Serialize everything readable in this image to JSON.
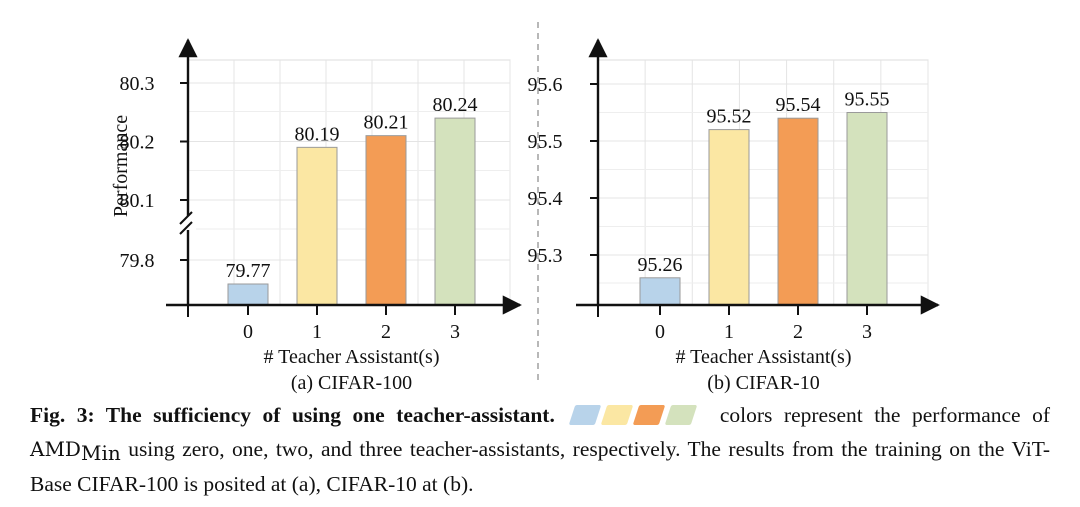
{
  "chart_data": [
    {
      "type": "bar",
      "panel_label": "(a) CIFAR-100",
      "xlabel": "# Teacher Assistant(s)",
      "ylabel": "Performance",
      "categories": [
        "0",
        "1",
        "2",
        "3"
      ],
      "values": [
        79.77,
        80.19,
        80.21,
        80.24
      ],
      "value_labels": [
        "79.77",
        "80.19",
        "80.21",
        "80.24"
      ],
      "yticks": [
        79.8,
        80.1,
        80.2,
        80.3
      ],
      "ytick_labels": [
        "79.8",
        "80.1",
        "80.2",
        "80.3"
      ],
      "ylim_lower": [
        79.75,
        79.82
      ],
      "ylim_upper": [
        80.06,
        80.33
      ],
      "axis_break": true,
      "grid": true
    },
    {
      "type": "bar",
      "panel_label": "(b) CIFAR-10",
      "xlabel": "# Teacher Assistant(s)",
      "ylabel": "",
      "categories": [
        "0",
        "1",
        "2",
        "3"
      ],
      "values": [
        95.26,
        95.52,
        95.54,
        95.55
      ],
      "value_labels": [
        "95.26",
        "95.52",
        "95.54",
        "95.55"
      ],
      "yticks": [
        95.3,
        95.4,
        95.5,
        95.6
      ],
      "ytick_labels": [
        "95.3",
        "95.4",
        "95.5",
        "95.6"
      ],
      "ylim": [
        95.22,
        95.63
      ],
      "grid": true
    }
  ],
  "colors": [
    "#b8d3ea",
    "#fbe7a3",
    "#f39c55",
    "#d4e2bd"
  ],
  "caption": {
    "label": "Fig. 3:",
    "title": "The sufficiency of using one teacher-assistant.",
    "text_before_method": "colors represent the performance of",
    "method": "AMD",
    "method_sub": "Min",
    "text_after_method": "using zero, one, two, and three teacher-assistants, respectively. The results from the training on the ViT-Base CIFAR-100 is posited at (a), CIFAR-10 at (b)."
  }
}
